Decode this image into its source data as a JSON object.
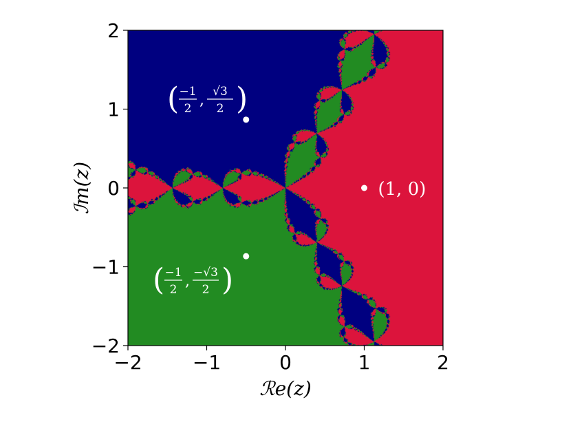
{
  "chart_data": {
    "type": "heatmap",
    "title": "",
    "xlabel": "ℛe(z)",
    "ylabel": "ℐm(z)",
    "xlim": [
      -2,
      2
    ],
    "ylim": [
      -2,
      2
    ],
    "grid": false,
    "x_ticks": [
      {
        "value": -2,
        "label": "−2"
      },
      {
        "value": -1,
        "label": "−1"
      },
      {
        "value": 0,
        "label": "0"
      },
      {
        "value": 1,
        "label": "1"
      },
      {
        "value": 2,
        "label": "2"
      }
    ],
    "y_ticks": [
      {
        "value": -2,
        "label": "−2"
      },
      {
        "value": -1,
        "label": "−1"
      },
      {
        "value": 0,
        "label": "0"
      },
      {
        "value": 1,
        "label": "1"
      },
      {
        "value": 2,
        "label": "2"
      }
    ],
    "basins": [
      {
        "root": [
          1,
          0
        ],
        "color": "#dc143c"
      },
      {
        "root": [
          -0.5,
          0.866
        ],
        "color": "#000080"
      },
      {
        "root": [
          -0.5,
          -0.866
        ],
        "color": "#228b22"
      }
    ],
    "points": [
      {
        "x": 1,
        "y": 0,
        "label": "(1, 0)"
      },
      {
        "x": -0.5,
        "y": 0.866,
        "label_open": "(",
        "num_x": "−1",
        "den_x": "2",
        "num_y": "√3",
        "den_y": "2",
        "label_close": ")"
      },
      {
        "x": -0.5,
        "y": -0.866,
        "label_open": "(",
        "num_x": "−1",
        "den_x": "2",
        "num_y": "−√3",
        "den_y": "2",
        "label_close": ")"
      }
    ],
    "point_color": "#ffffff"
  }
}
